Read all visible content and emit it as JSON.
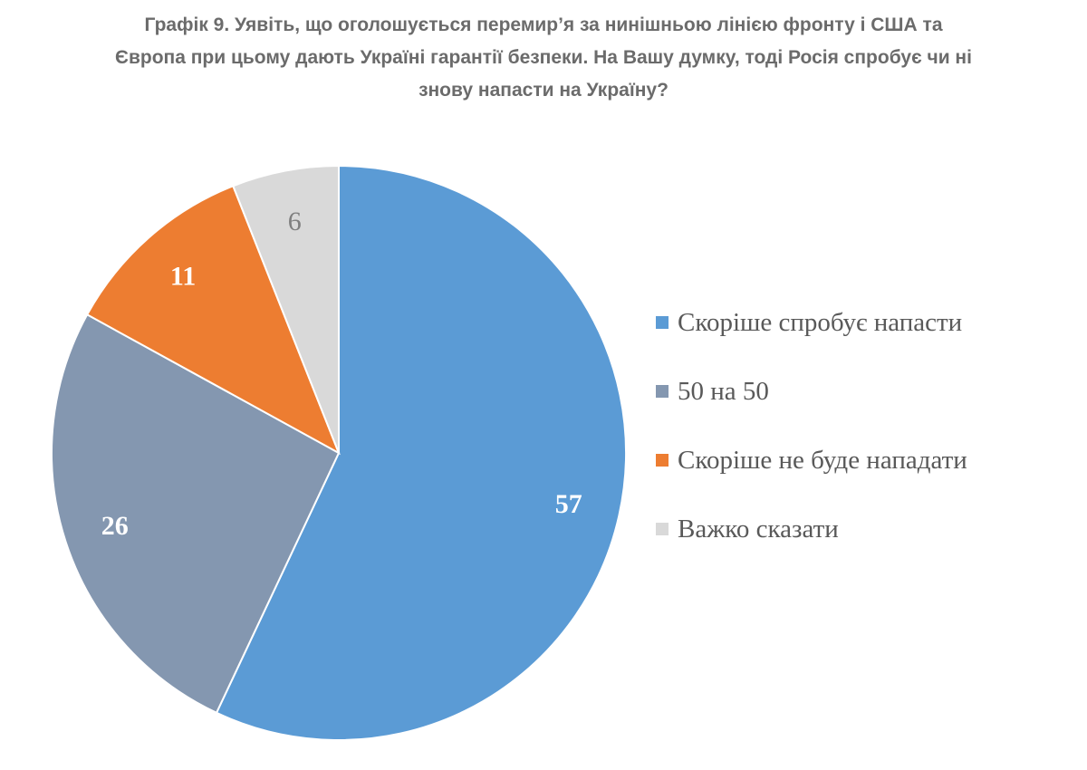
{
  "chart_data": {
    "type": "pie",
    "title_lines": [
      "Графік 9. Уявіть, що оголошується перемир’я за нинішньою лінією фронту і США та",
      "Європа при цьому дають Україні гарантії безпеки. На Вашу думку, тоді Росія спробує чи ні",
      "знову напасти на Україну?"
    ],
    "categories": [
      "Скоріше спробує напасти",
      "50 на 50",
      "Скоріше не буде нападати",
      "Важко сказати"
    ],
    "values": [
      57,
      26,
      11,
      6
    ],
    "labels": [
      "57",
      "26",
      "11",
      "6"
    ],
    "colors": [
      "#5b9bd5",
      "#8497b0",
      "#ed7d31",
      "#d9d9d9"
    ],
    "label_colors": [
      "#ffffff",
      "#ffffff",
      "#ffffff",
      "#7f7f7f"
    ],
    "legend_placement": "right"
  }
}
